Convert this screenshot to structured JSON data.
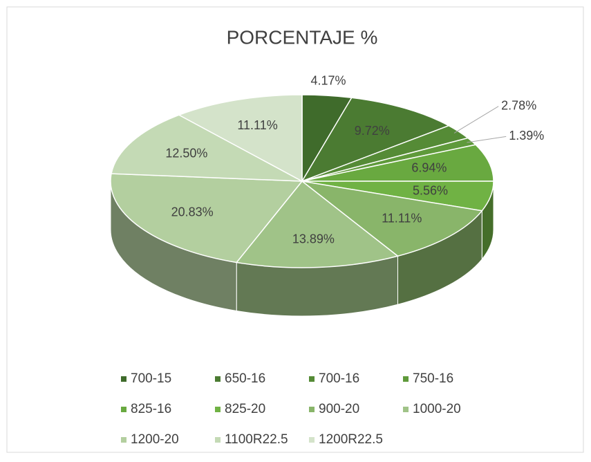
{
  "chart_data": {
    "type": "pie",
    "title": "PORCENTAJE %",
    "categories": [
      "700-15",
      "650-16",
      "700-16",
      "750-16",
      "825-16",
      "825-20",
      "900-20",
      "1000-20",
      "1200-20",
      "1100R22.5",
      "1200R22.5"
    ],
    "values": [
      4.17,
      9.72,
      2.78,
      1.39,
      6.94,
      5.56,
      11.11,
      13.89,
      20.83,
      12.5,
      11.11
    ],
    "value_labels": [
      "4.17%",
      "9.72%",
      "2.78%",
      "1.39%",
      "6.94%",
      "5.56%",
      "11.11%",
      "13.89%",
      "20.83%",
      "12.50%",
      "11.11%"
    ],
    "colors": [
      "#3f6b2b",
      "#4b7b32",
      "#558b36",
      "#5f9a3b",
      "#69a940",
      "#70b244",
      "#89b56a",
      "#a0c388",
      "#b3cf9f",
      "#c4dab5",
      "#d4e3ca"
    ],
    "legend": "bottom"
  }
}
